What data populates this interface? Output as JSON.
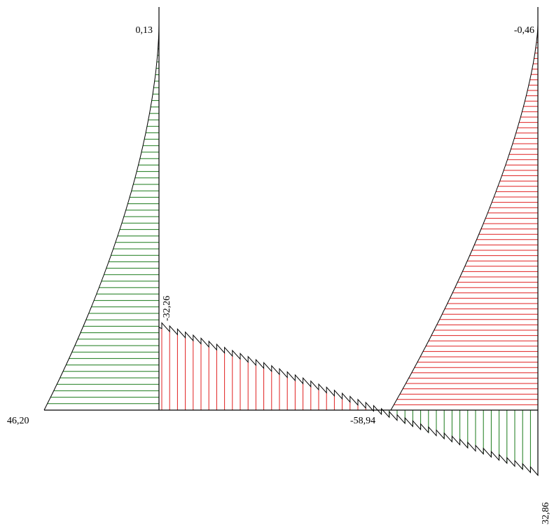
{
  "diagram": {
    "labels": {
      "left_column_top": "0,13",
      "left_column_bottom": "46,20",
      "beam_left_end": "-32,26",
      "beam_min": "-58,94",
      "right_column_top": "-0,46",
      "beam_right_end": "32,86"
    },
    "colors": {
      "positive": "#1a7a1a",
      "negative": "#e02020",
      "axis": "#000000",
      "outline": "#000000"
    }
  }
}
